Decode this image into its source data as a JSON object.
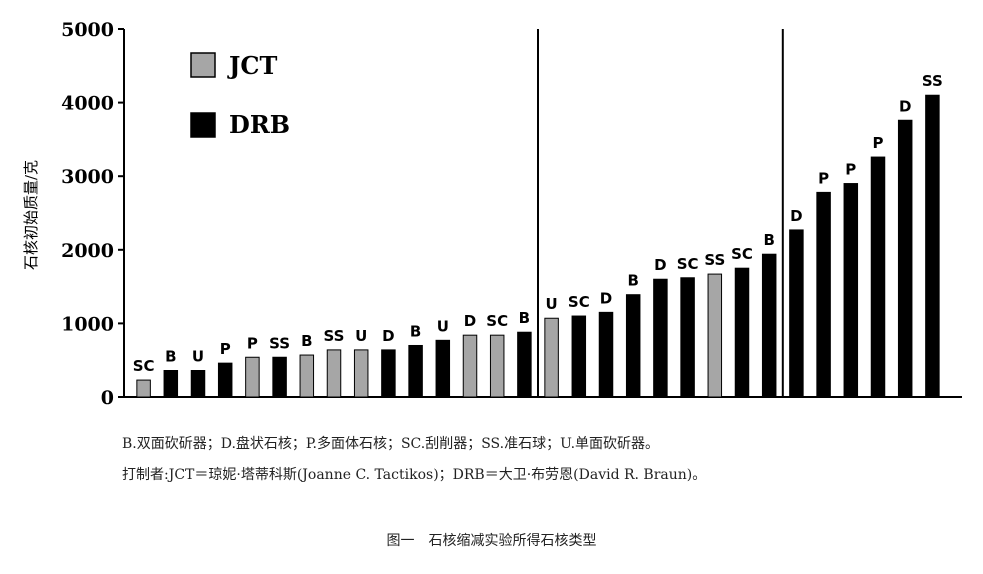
{
  "chart_data": {
    "type": "bar",
    "ylabel": "石核初始质量/克",
    "ylim": [
      0,
      5000
    ],
    "yticks": [
      0,
      1000,
      2000,
      3000,
      4000,
      5000
    ],
    "legend": {
      "placement": "top-left",
      "entries": [
        {
          "name": "JCT",
          "color": "#a6a6a6"
        },
        {
          "name": "DRB",
          "color": "#000000"
        }
      ]
    },
    "panel_dividers_after": [
      14,
      23
    ],
    "bars": [
      {
        "label": "SC",
        "value": 230,
        "maker": "JCT"
      },
      {
        "label": "B",
        "value": 360,
        "maker": "DRB"
      },
      {
        "label": "U",
        "value": 360,
        "maker": "DRB"
      },
      {
        "label": "P",
        "value": 460,
        "maker": "DRB"
      },
      {
        "label": "P",
        "value": 540,
        "maker": "JCT"
      },
      {
        "label": "SS",
        "value": 540,
        "maker": "DRB"
      },
      {
        "label": "B",
        "value": 570,
        "maker": "JCT"
      },
      {
        "label": "SS",
        "value": 640,
        "maker": "JCT"
      },
      {
        "label": "U",
        "value": 640,
        "maker": "JCT"
      },
      {
        "label": "D",
        "value": 640,
        "maker": "DRB"
      },
      {
        "label": "B",
        "value": 700,
        "maker": "DRB"
      },
      {
        "label": "U",
        "value": 770,
        "maker": "DRB"
      },
      {
        "label": "D",
        "value": 840,
        "maker": "JCT"
      },
      {
        "label": "SC",
        "value": 840,
        "maker": "JCT"
      },
      {
        "label": "B",
        "value": 880,
        "maker": "DRB"
      },
      {
        "label": "U",
        "value": 1070,
        "maker": "JCT"
      },
      {
        "label": "SC",
        "value": 1100,
        "maker": "DRB"
      },
      {
        "label": "D",
        "value": 1150,
        "maker": "DRB"
      },
      {
        "label": "B",
        "value": 1390,
        "maker": "DRB"
      },
      {
        "label": "D",
        "value": 1600,
        "maker": "DRB"
      },
      {
        "label": "SC",
        "value": 1620,
        "maker": "DRB"
      },
      {
        "label": "SS",
        "value": 1670,
        "maker": "JCT"
      },
      {
        "label": "SC",
        "value": 1750,
        "maker": "DRB"
      },
      {
        "label": "B",
        "value": 1940,
        "maker": "DRB"
      },
      {
        "label": "D",
        "value": 2270,
        "maker": "DRB"
      },
      {
        "label": "P",
        "value": 2780,
        "maker": "DRB"
      },
      {
        "label": "P",
        "value": 2900,
        "maker": "DRB"
      },
      {
        "label": "P",
        "value": 3260,
        "maker": "DRB"
      },
      {
        "label": "D",
        "value": 3760,
        "maker": "DRB"
      },
      {
        "label": "SS",
        "value": 4100,
        "maker": "DRB"
      }
    ]
  },
  "notes": {
    "line1": "B.双面砍斫器；D.盘状石核；P.多面体石核；SC.刮削器；SS.准石球；U.单面砍斫器。",
    "line2": "打制者:JCT＝琼妮·塔蒂科斯(Joanne C. Tactikos)；DRB＝大卫·布劳恩(David R. Braun)。"
  },
  "figure_title": "图一　石核缩减实验所得石核类型"
}
